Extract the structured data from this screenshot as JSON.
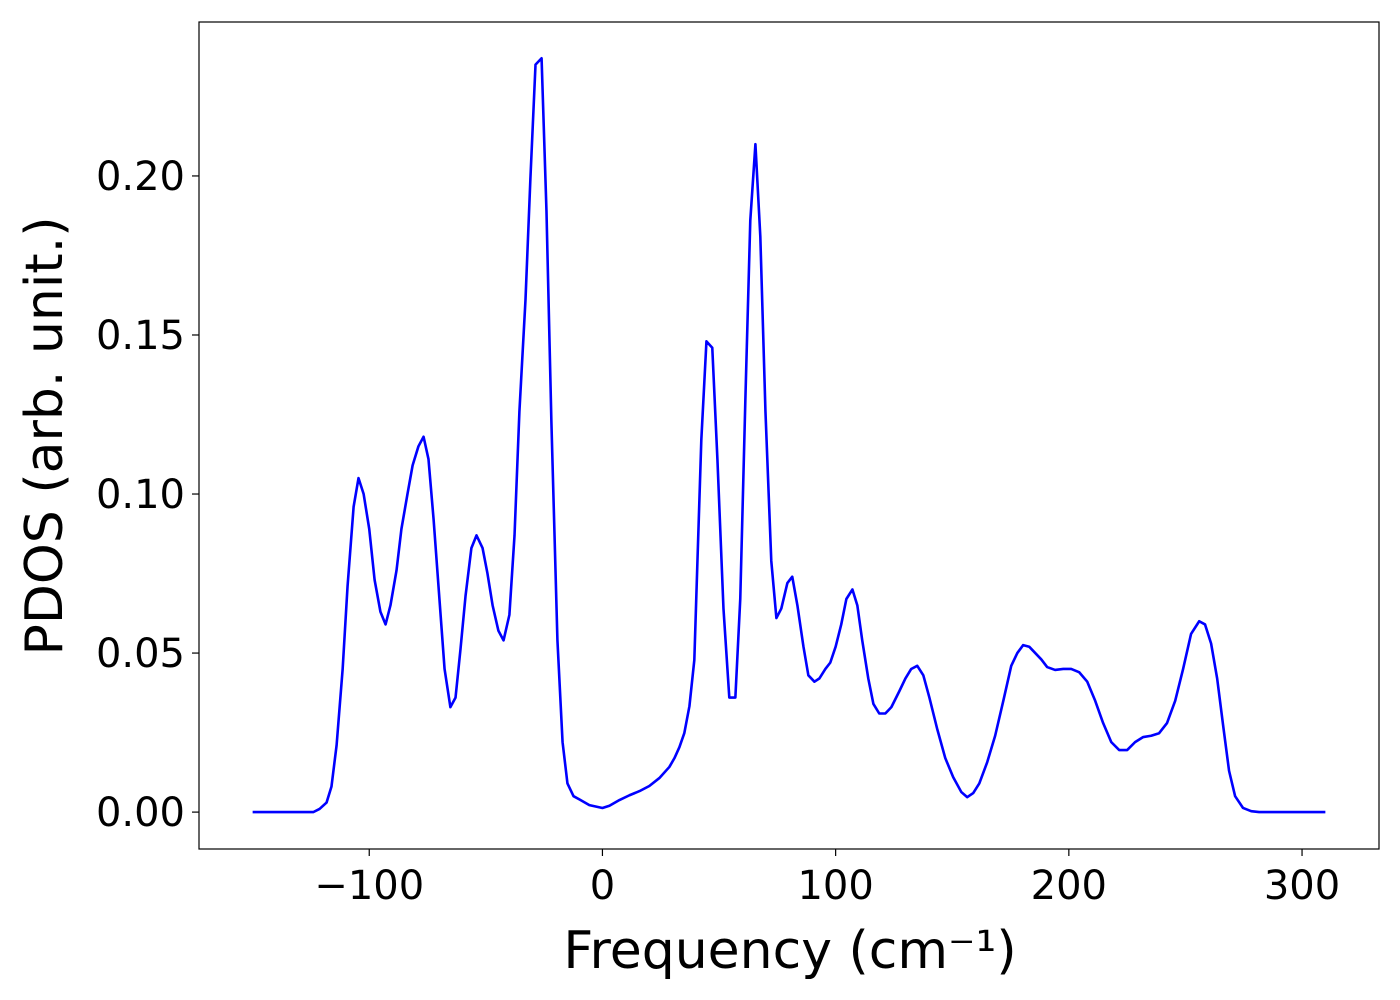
{
  "chart_data": {
    "type": "line",
    "xlabel": "Frequency (cm⁻¹)",
    "ylabel": "PDOS (arb. unit.)",
    "xlim": [
      -173,
      333
    ],
    "ylim": [
      -0.0116,
      0.2484
    ],
    "xticks": [
      {
        "value": -100,
        "label": "−100"
      },
      0,
      100,
      200,
      300
    ],
    "yticks": [
      {
        "value": 0,
        "label": "0.00"
      },
      {
        "value": 0.05,
        "label": "0.05"
      },
      {
        "value": 0.1,
        "label": "0.10"
      },
      {
        "value": 0.15,
        "label": "0.15"
      },
      {
        "value": 0.2,
        "label": "0.20"
      }
    ],
    "grid": false,
    "series": [
      {
        "color": "#0000ff",
        "x": [
          -150,
          -140,
          -130,
          -124,
          -121.3,
          -118.3,
          -116.2,
          -114,
          -111.4,
          -109.3,
          -106.7,
          -104.6,
          -102.4,
          -100,
          -97.7,
          -95.2,
          -93,
          -90.9,
          -88.3,
          -86.2,
          -83.6,
          -81.4,
          -78.9,
          -76.7,
          -74.6,
          -72.4,
          -69.9,
          -67.7,
          -65.2,
          -63,
          -60.9,
          -58.7,
          -56.2,
          -54,
          -51.4,
          -49.3,
          -47.1,
          -44.6,
          -42.4,
          -39.9,
          -37.7,
          -35.6,
          -33,
          -30.9,
          -28.7,
          -26.1,
          -24,
          -21.9,
          -19.3,
          -17.1,
          -15,
          -12.4,
          -9.9,
          -5.6,
          0,
          3,
          7.3,
          11.6,
          15.9,
          20.1,
          24.4,
          28.7,
          30.9,
          33,
          35.1,
          37.3,
          39.4,
          40.7,
          42.4,
          44.6,
          47.1,
          49.3,
          51.9,
          54.4,
          57,
          59.1,
          61.3,
          63.4,
          65.6,
          67.7,
          69.9,
          72.4,
          74.6,
          76.7,
          79.3,
          81.4,
          83.6,
          86.2,
          88.3,
          90.9,
          93,
          95.6,
          97.7,
          100,
          102.4,
          104.6,
          107.2,
          109.3,
          111.4,
          114,
          116.2,
          118.7,
          121.3,
          123.9,
          127.3,
          129.9,
          132.4,
          135,
          137.6,
          140.2,
          143.6,
          147,
          150.4,
          153.9,
          156.4,
          159,
          161.6,
          165,
          168.4,
          171.9,
          175.3,
          177.9,
          180.4,
          183,
          185.6,
          188.2,
          190.7,
          194.1,
          197.6,
          201,
          204.4,
          207.9,
          211.3,
          214.7,
          218.2,
          221.6,
          225,
          228.4,
          231.9,
          235.3,
          238.7,
          242.1,
          245.6,
          249,
          252.4,
          255.9,
          258.4,
          261,
          263.6,
          266.2,
          268.7,
          271.3,
          274.7,
          278.2,
          281.6,
          290,
          300,
          310
        ],
        "values": [
          0,
          0,
          0,
          0,
          0.001,
          0.003,
          0.008,
          0.021,
          0.045,
          0.071,
          0.096,
          0.105,
          0.1,
          0.089,
          0.073,
          0.063,
          0.059,
          0.065,
          0.076,
          0.089,
          0.1,
          0.109,
          0.115,
          0.118,
          0.111,
          0.092,
          0.067,
          0.045,
          0.033,
          0.036,
          0.051,
          0.068,
          0.083,
          0.087,
          0.083,
          0.075,
          0.065,
          0.057,
          0.054,
          0.062,
          0.087,
          0.126,
          0.161,
          0.199,
          0.235,
          0.237,
          0.189,
          0.123,
          0.054,
          0.022,
          0.009,
          0.005,
          0.004,
          0.0022,
          0.0013,
          0.002,
          0.0038,
          0.0053,
          0.0066,
          0.0082,
          0.0107,
          0.0142,
          0.017,
          0.0204,
          0.0248,
          0.0333,
          0.0478,
          0.078,
          0.117,
          0.148,
          0.146,
          0.111,
          0.064,
          0.036,
          0.036,
          0.067,
          0.13,
          0.186,
          0.21,
          0.181,
          0.126,
          0.079,
          0.061,
          0.064,
          0.072,
          0.074,
          0.065,
          0.052,
          0.043,
          0.041,
          0.042,
          0.045,
          0.047,
          0.052,
          0.059,
          0.067,
          0.07,
          0.065,
          0.054,
          0.042,
          0.034,
          0.031,
          0.031,
          0.033,
          0.038,
          0.042,
          0.045,
          0.046,
          0.043,
          0.036,
          0.026,
          0.017,
          0.011,
          0.0063,
          0.0047,
          0.006,
          0.009,
          0.0157,
          0.024,
          0.035,
          0.046,
          0.05,
          0.0525,
          0.052,
          0.05,
          0.048,
          0.0456,
          0.0447,
          0.045,
          0.045,
          0.044,
          0.041,
          0.035,
          0.028,
          0.022,
          0.0195,
          0.0195,
          0.022,
          0.0236,
          0.024,
          0.0248,
          0.028,
          0.035,
          0.045,
          0.056,
          0.06,
          0.059,
          0.053,
          0.042,
          0.027,
          0.013,
          0.005,
          0.0013,
          0.0003,
          0,
          0,
          0,
          0
        ]
      }
    ]
  }
}
